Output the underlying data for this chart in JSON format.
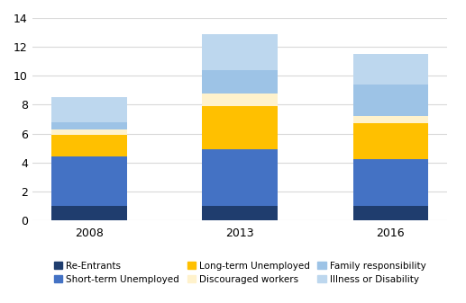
{
  "categories": [
    "2008",
    "2013",
    "2016"
  ],
  "series_order": [
    "Re-Entrants",
    "Short-term Unemployed",
    "Long-term Unemployed",
    "Discouraged workers",
    "Family responsibility",
    "Illness or Disability"
  ],
  "series": {
    "Re-Entrants": [
      1.0,
      1.0,
      1.0
    ],
    "Short-term Unemployed": [
      3.4,
      3.9,
      3.2
    ],
    "Long-term Unemployed": [
      1.5,
      3.0,
      2.5
    ],
    "Discouraged workers": [
      0.35,
      0.85,
      0.5
    ],
    "Family responsibility": [
      0.5,
      1.65,
      2.2
    ],
    "Illness or Disability": [
      1.75,
      2.5,
      2.1
    ]
  },
  "colors": {
    "Re-Entrants": "#1f3d6e",
    "Short-term Unemployed": "#4472c4",
    "Long-term Unemployed": "#ffc000",
    "Discouraged workers": "#fff2cc",
    "Family responsibility": "#9dc3e6",
    "Illness or Disability": "#bdd7ee"
  },
  "legend_order": [
    "Re-Entrants",
    "Short-term Unemployed",
    "Long-term Unemployed",
    "Discouraged workers",
    "Family responsibility",
    "Illness or Disability"
  ],
  "ylim": [
    0,
    14
  ],
  "yticks": [
    0,
    2,
    4,
    6,
    8,
    10,
    12,
    14
  ],
  "bar_width": 0.5,
  "figsize": [
    5.17,
    3.37
  ],
  "dpi": 100,
  "background_color": "#ffffff",
  "grid_color": "#d9d9d9"
}
